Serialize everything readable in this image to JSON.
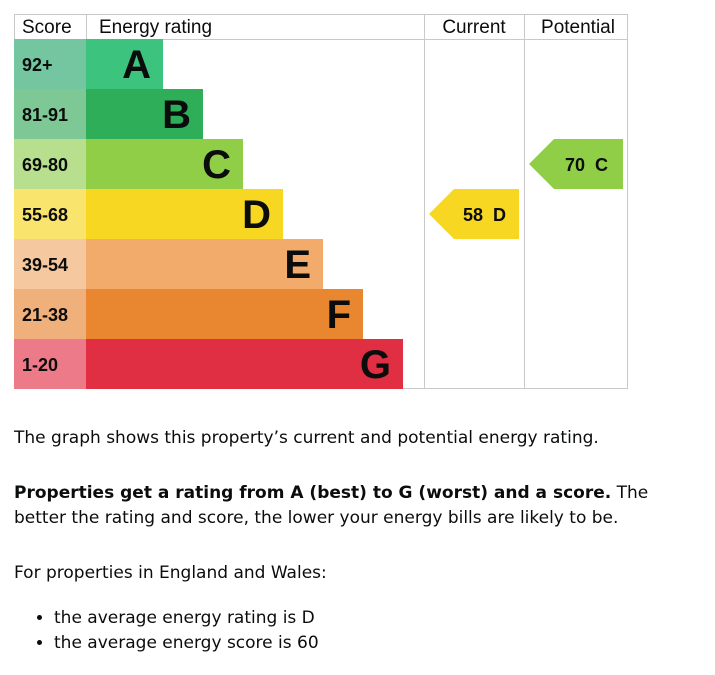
{
  "chart_data": {
    "type": "table",
    "columns": {
      "score": "Score",
      "energy_rating": "Energy rating",
      "current": "Current",
      "potential": "Potential"
    },
    "bands": [
      {
        "score_range": "92+",
        "letter": "A",
        "band_color": "#3cc47f",
        "score_color": "#74c6a1"
      },
      {
        "score_range": "81-91",
        "letter": "B",
        "band_color": "#2fae59",
        "score_color": "#7ec895"
      },
      {
        "score_range": "69-80",
        "letter": "C",
        "band_color": "#8fce46",
        "score_color": "#b7df8e"
      },
      {
        "score_range": "55-68",
        "letter": "D",
        "band_color": "#f7d721",
        "score_color": "#f9e46e"
      },
      {
        "score_range": "39-54",
        "letter": "E",
        "band_color": "#f3ab6b",
        "score_color": "#f6c8a0"
      },
      {
        "score_range": "21-38",
        "letter": "F",
        "band_color": "#e8872f",
        "score_color": "#f0b07b"
      },
      {
        "score_range": "1-20",
        "letter": "G",
        "band_color": "#e02f43",
        "score_color": "#ec7a89"
      }
    ],
    "current": {
      "score": 58,
      "letter": "D",
      "label": "58  D",
      "color": "#f7d721"
    },
    "potential": {
      "score": 70,
      "letter": "C",
      "label": "70  C",
      "color": "#8fce46"
    }
  },
  "text": {
    "graph_summary": "The graph shows this property’s current and potential energy rating.",
    "ratings_bold": "Properties get a rating from A (best) to G (worst) and a score.",
    "ratings_rest": " The better the rating and score, the lower your energy bills are likely to be.",
    "region_intro": "For properties in England and Wales:",
    "averages": [
      "the average energy rating is D",
      "the average energy score is 60"
    ]
  }
}
